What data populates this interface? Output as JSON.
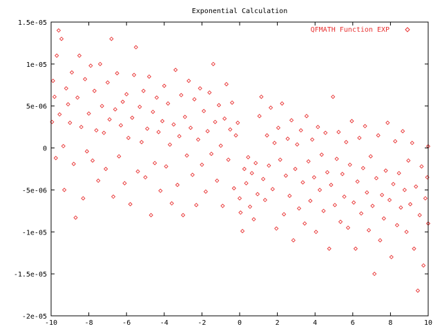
{
  "chart_data": {
    "type": "scatter",
    "title": "Exponential Calculation",
    "xlabel": "",
    "ylabel": "",
    "xlim": [
      -10,
      10
    ],
    "ylim": [
      -2e-05,
      1.5e-05
    ],
    "x_ticks": [
      -10,
      -8,
      -6,
      -4,
      -2,
      0,
      2,
      4,
      6,
      8,
      10
    ],
    "x_tick_labels": [
      "-10",
      "-8",
      "-6",
      "-4",
      "-2",
      "0",
      "2",
      "4",
      "6",
      "8",
      "10"
    ],
    "y_ticks": [
      -2e-05,
      -1.5e-05,
      -1e-05,
      -5e-06,
      0,
      5e-06,
      1e-05,
      1.5e-05
    ],
    "y_tick_labels": [
      "-2e-05",
      "-1.5e-05",
      "-1e-05",
      "-5e-06",
      "0",
      "5e-06",
      "1e-05",
      "1.5e-05"
    ],
    "grid": false,
    "legend_position": "top-right",
    "series": [
      {
        "name": "QFMATH Function EXP",
        "color": "#e83030",
        "marker": "diamond",
        "points": [
          [
            -9.95,
            3.1e-06
          ],
          [
            -9.9,
            8e-06
          ],
          [
            -9.82,
            6.1e-06
          ],
          [
            -9.75,
            -1.2e-06
          ],
          [
            -9.7,
            1.1e-05
          ],
          [
            -9.6,
            1.4e-05
          ],
          [
            -9.55,
            4e-06
          ],
          [
            -9.45,
            1.3e-05
          ],
          [
            -9.35,
            2.2e-07
          ],
          [
            -9.3,
            -5e-06
          ],
          [
            -9.2,
            7.1e-06
          ],
          [
            -9.1,
            5.2e-06
          ],
          [
            -9.0,
            3e-06
          ],
          [
            -8.9,
            9e-06
          ],
          [
            -8.8,
            -1.9e-06
          ],
          [
            -8.7,
            -8.3e-06
          ],
          [
            -8.6,
            6e-06
          ],
          [
            -8.5,
            1.1e-05
          ],
          [
            -8.4,
            2.5e-06
          ],
          [
            -8.3,
            -6e-06
          ],
          [
            -8.2,
            8.2e-06
          ],
          [
            -8.1,
            -4e-07
          ],
          [
            -8.0,
            4.1e-06
          ],
          [
            -7.9,
            9.8e-06
          ],
          [
            -7.8,
            -1.5e-06
          ],
          [
            -7.7,
            6.8e-06
          ],
          [
            -7.6,
            2.1e-06
          ],
          [
            -7.5,
            -3.9e-06
          ],
          [
            -7.4,
            1e-05
          ],
          [
            -7.3,
            5e-06
          ],
          [
            -7.2,
            1.8e-06
          ],
          [
            -7.1,
            -2.5e-06
          ],
          [
            -7.0,
            7.8e-06
          ],
          [
            -6.9,
            3.4e-06
          ],
          [
            -6.8,
            1.3e-05
          ],
          [
            -6.7,
            -5.8e-06
          ],
          [
            -6.6,
            4.6e-06
          ],
          [
            -6.5,
            8.9e-06
          ],
          [
            -6.4,
            -1e-06
          ],
          [
            -6.3,
            2.7e-06
          ],
          [
            -6.2,
            5.5e-06
          ],
          [
            -6.1,
            -4.2e-06
          ],
          [
            -6.0,
            6.4e-06
          ],
          [
            -5.9,
            1.2e-06
          ],
          [
            -5.8,
            -6.7e-06
          ],
          [
            -5.7,
            3.6e-06
          ],
          [
            -5.6,
            8.7e-06
          ],
          [
            -5.5,
            1.2e-05
          ],
          [
            -5.4,
            -2.8e-06
          ],
          [
            -5.3,
            4.9e-06
          ],
          [
            -5.2,
            7e-07
          ],
          [
            -5.1,
            6.8e-06
          ],
          [
            -5.0,
            -3.5e-06
          ],
          [
            -4.9,
            2.3e-06
          ],
          [
            -4.8,
            8.5e-06
          ],
          [
            -4.7,
            -8e-06
          ],
          [
            -4.6,
            4.3e-06
          ],
          [
            -4.5,
            -1.8e-06
          ],
          [
            -4.4,
            6e-06
          ],
          [
            -4.3,
            1.9e-06
          ],
          [
            -4.2,
            -5.1e-06
          ],
          [
            -4.1,
            3.2e-06
          ],
          [
            -4.0,
            7.4e-06
          ],
          [
            -3.9,
            -2.2e-06
          ],
          [
            -3.8,
            5.3e-06
          ],
          [
            -3.7,
            4e-07
          ],
          [
            -3.6,
            -6.6e-06
          ],
          [
            -3.5,
            2.8e-06
          ],
          [
            -3.4,
            9.3e-06
          ],
          [
            -3.3,
            -4.4e-06
          ],
          [
            -3.2,
            1.4e-06
          ],
          [
            -3.1,
            6.3e-06
          ],
          [
            -3.0,
            -8e-06
          ],
          [
            -2.9,
            3.7e-06
          ],
          [
            -2.8,
            -9e-07
          ],
          [
            -2.7,
            8e-06
          ],
          [
            -2.6,
            2.4e-06
          ],
          [
            -2.5,
            -3.2e-06
          ],
          [
            -2.4,
            5.8e-06
          ],
          [
            -2.3,
            -6.8e-06
          ],
          [
            -2.2,
            1e-06
          ],
          [
            -2.1,
            7.1e-06
          ],
          [
            -2.0,
            -2e-06
          ],
          [
            -1.9,
            4.4e-06
          ],
          [
            -1.8,
            -5.2e-06
          ],
          [
            -1.7,
            2e-06
          ],
          [
            -1.6,
            6.6e-06
          ],
          [
            -1.5,
            -7e-07
          ],
          [
            -1.4,
            1e-05
          ],
          [
            -1.3,
            3.1e-06
          ],
          [
            -1.2,
            -3.9e-06
          ],
          [
            -1.1,
            5.1e-06
          ],
          [
            -1.0,
            2.7e-07
          ],
          [
            -0.9,
            -6.9e-06
          ],
          [
            -0.8,
            3.5e-06
          ],
          [
            -0.7,
            7.6e-06
          ],
          [
            -0.6,
            -1.4e-06
          ],
          [
            -0.5,
            2.2e-06
          ],
          [
            -0.4,
            5.4e-06
          ],
          [
            -0.3,
            -4.8e-06
          ],
          [
            -0.2,
            1.5e-06
          ],
          [
            -0.1,
            3e-06
          ],
          [
            0.0,
            -6e-06
          ],
          [
            0.05,
            -7.7e-06
          ],
          [
            0.15,
            -9.9e-06
          ],
          [
            0.25,
            -2.5e-06
          ],
          [
            0.35,
            -4.2e-06
          ],
          [
            0.45,
            -1.1e-06
          ],
          [
            0.55,
            -7e-06
          ],
          [
            0.65,
            -3e-06
          ],
          [
            0.75,
            -8.5e-06
          ],
          [
            0.85,
            -1.8e-06
          ],
          [
            0.95,
            -5.5e-06
          ],
          [
            1.05,
            3.8e-06
          ],
          [
            1.15,
            6.1e-06
          ],
          [
            1.25,
            -3.7e-06
          ],
          [
            1.35,
            -6.2e-06
          ],
          [
            1.45,
            1.5e-06
          ],
          [
            1.55,
            -2.1e-06
          ],
          [
            1.65,
            4.8e-06
          ],
          [
            1.75,
            -4.9e-06
          ],
          [
            1.85,
            6e-07
          ],
          [
            1.95,
            -9.6e-06
          ],
          [
            2.05,
            2.4e-06
          ],
          [
            2.15,
            -1.4e-06
          ],
          [
            2.25,
            5.3e-06
          ],
          [
            2.35,
            -7.9e-06
          ],
          [
            2.45,
            -3.3e-06
          ],
          [
            2.55,
            1.1e-06
          ],
          [
            2.65,
            -5.7e-06
          ],
          [
            2.75,
            3.3e-06
          ],
          [
            2.85,
            -1.1e-05
          ],
          [
            2.95,
            -2.5e-06
          ],
          [
            3.05,
            4.2e-07
          ],
          [
            3.15,
            -7.2e-06
          ],
          [
            3.25,
            2.1e-06
          ],
          [
            3.35,
            -4.1e-06
          ],
          [
            3.45,
            -9e-06
          ],
          [
            3.55,
            3.8e-06
          ],
          [
            3.65,
            -1.6e-06
          ],
          [
            3.75,
            -6.3e-06
          ],
          [
            3.85,
            1e-06
          ],
          [
            3.95,
            -3.5e-06
          ],
          [
            4.05,
            -1e-05
          ],
          [
            4.15,
            2.5e-06
          ],
          [
            4.25,
            -5e-06
          ],
          [
            4.35,
            -8e-07
          ],
          [
            4.45,
            -7.5e-06
          ],
          [
            4.55,
            1.8e-06
          ],
          [
            4.65,
            -2.9e-06
          ],
          [
            4.75,
            -1.2e-05
          ],
          [
            4.85,
            -4.4e-06
          ],
          [
            4.95,
            6.1e-06
          ],
          [
            5.05,
            -6.8e-06
          ],
          [
            5.15,
            -1.3e-06
          ],
          [
            5.25,
            1.9e-06
          ],
          [
            5.35,
            -8.8e-06
          ],
          [
            5.45,
            -3.1e-06
          ],
          [
            5.55,
            -5.8e-06
          ],
          [
            5.65,
            7e-07
          ],
          [
            5.75,
            -9.5e-06
          ],
          [
            5.85,
            -2e-06
          ],
          [
            5.95,
            3.2e-06
          ],
          [
            6.05,
            -6.5e-06
          ],
          [
            6.15,
            -1.2e-05
          ],
          [
            6.25,
            -4e-06
          ],
          [
            6.35,
            1.2e-06
          ],
          [
            6.45,
            -7.8e-06
          ],
          [
            6.55,
            -2.4e-06
          ],
          [
            6.65,
            2.6e-06
          ],
          [
            6.75,
            -5.3e-06
          ],
          [
            6.85,
            -9.8e-06
          ],
          [
            6.95,
            -1e-06
          ],
          [
            7.05,
            -6.9e-06
          ],
          [
            7.15,
            -1.5e-05
          ],
          [
            7.25,
            -3.6e-06
          ],
          [
            7.35,
            1.5e-06
          ],
          [
            7.45,
            -1.1e-05
          ],
          [
            7.55,
            -5.6e-06
          ],
          [
            7.65,
            -8.4e-06
          ],
          [
            7.75,
            -2.7e-06
          ],
          [
            7.85,
            3e-06
          ],
          [
            7.95,
            -6.2e-06
          ],
          [
            8.05,
            -1.3e-05
          ],
          [
            8.15,
            -4.3e-06
          ],
          [
            8.25,
            8e-07
          ],
          [
            8.35,
            -9.2e-06
          ],
          [
            8.45,
            -3e-06
          ],
          [
            8.55,
            -7.1e-06
          ],
          [
            8.65,
            2e-06
          ],
          [
            8.75,
            -5e-06
          ],
          [
            8.85,
            -1e-05
          ],
          [
            8.95,
            -1.5e-06
          ],
          [
            9.05,
            -6.7e-06
          ],
          [
            9.15,
            6e-07
          ],
          [
            9.25,
            -1.2e-05
          ],
          [
            9.35,
            -4.6e-06
          ],
          [
            9.45,
            -1.7e-05
          ],
          [
            9.55,
            -8e-06
          ],
          [
            9.65,
            -2.2e-06
          ],
          [
            9.75,
            -1.4e-05
          ],
          [
            9.85,
            -6e-06
          ],
          [
            9.95,
            -3.5e-06
          ],
          [
            10.0,
            -9e-06
          ],
          [
            10.0,
            2e-07
          ]
        ]
      }
    ]
  }
}
